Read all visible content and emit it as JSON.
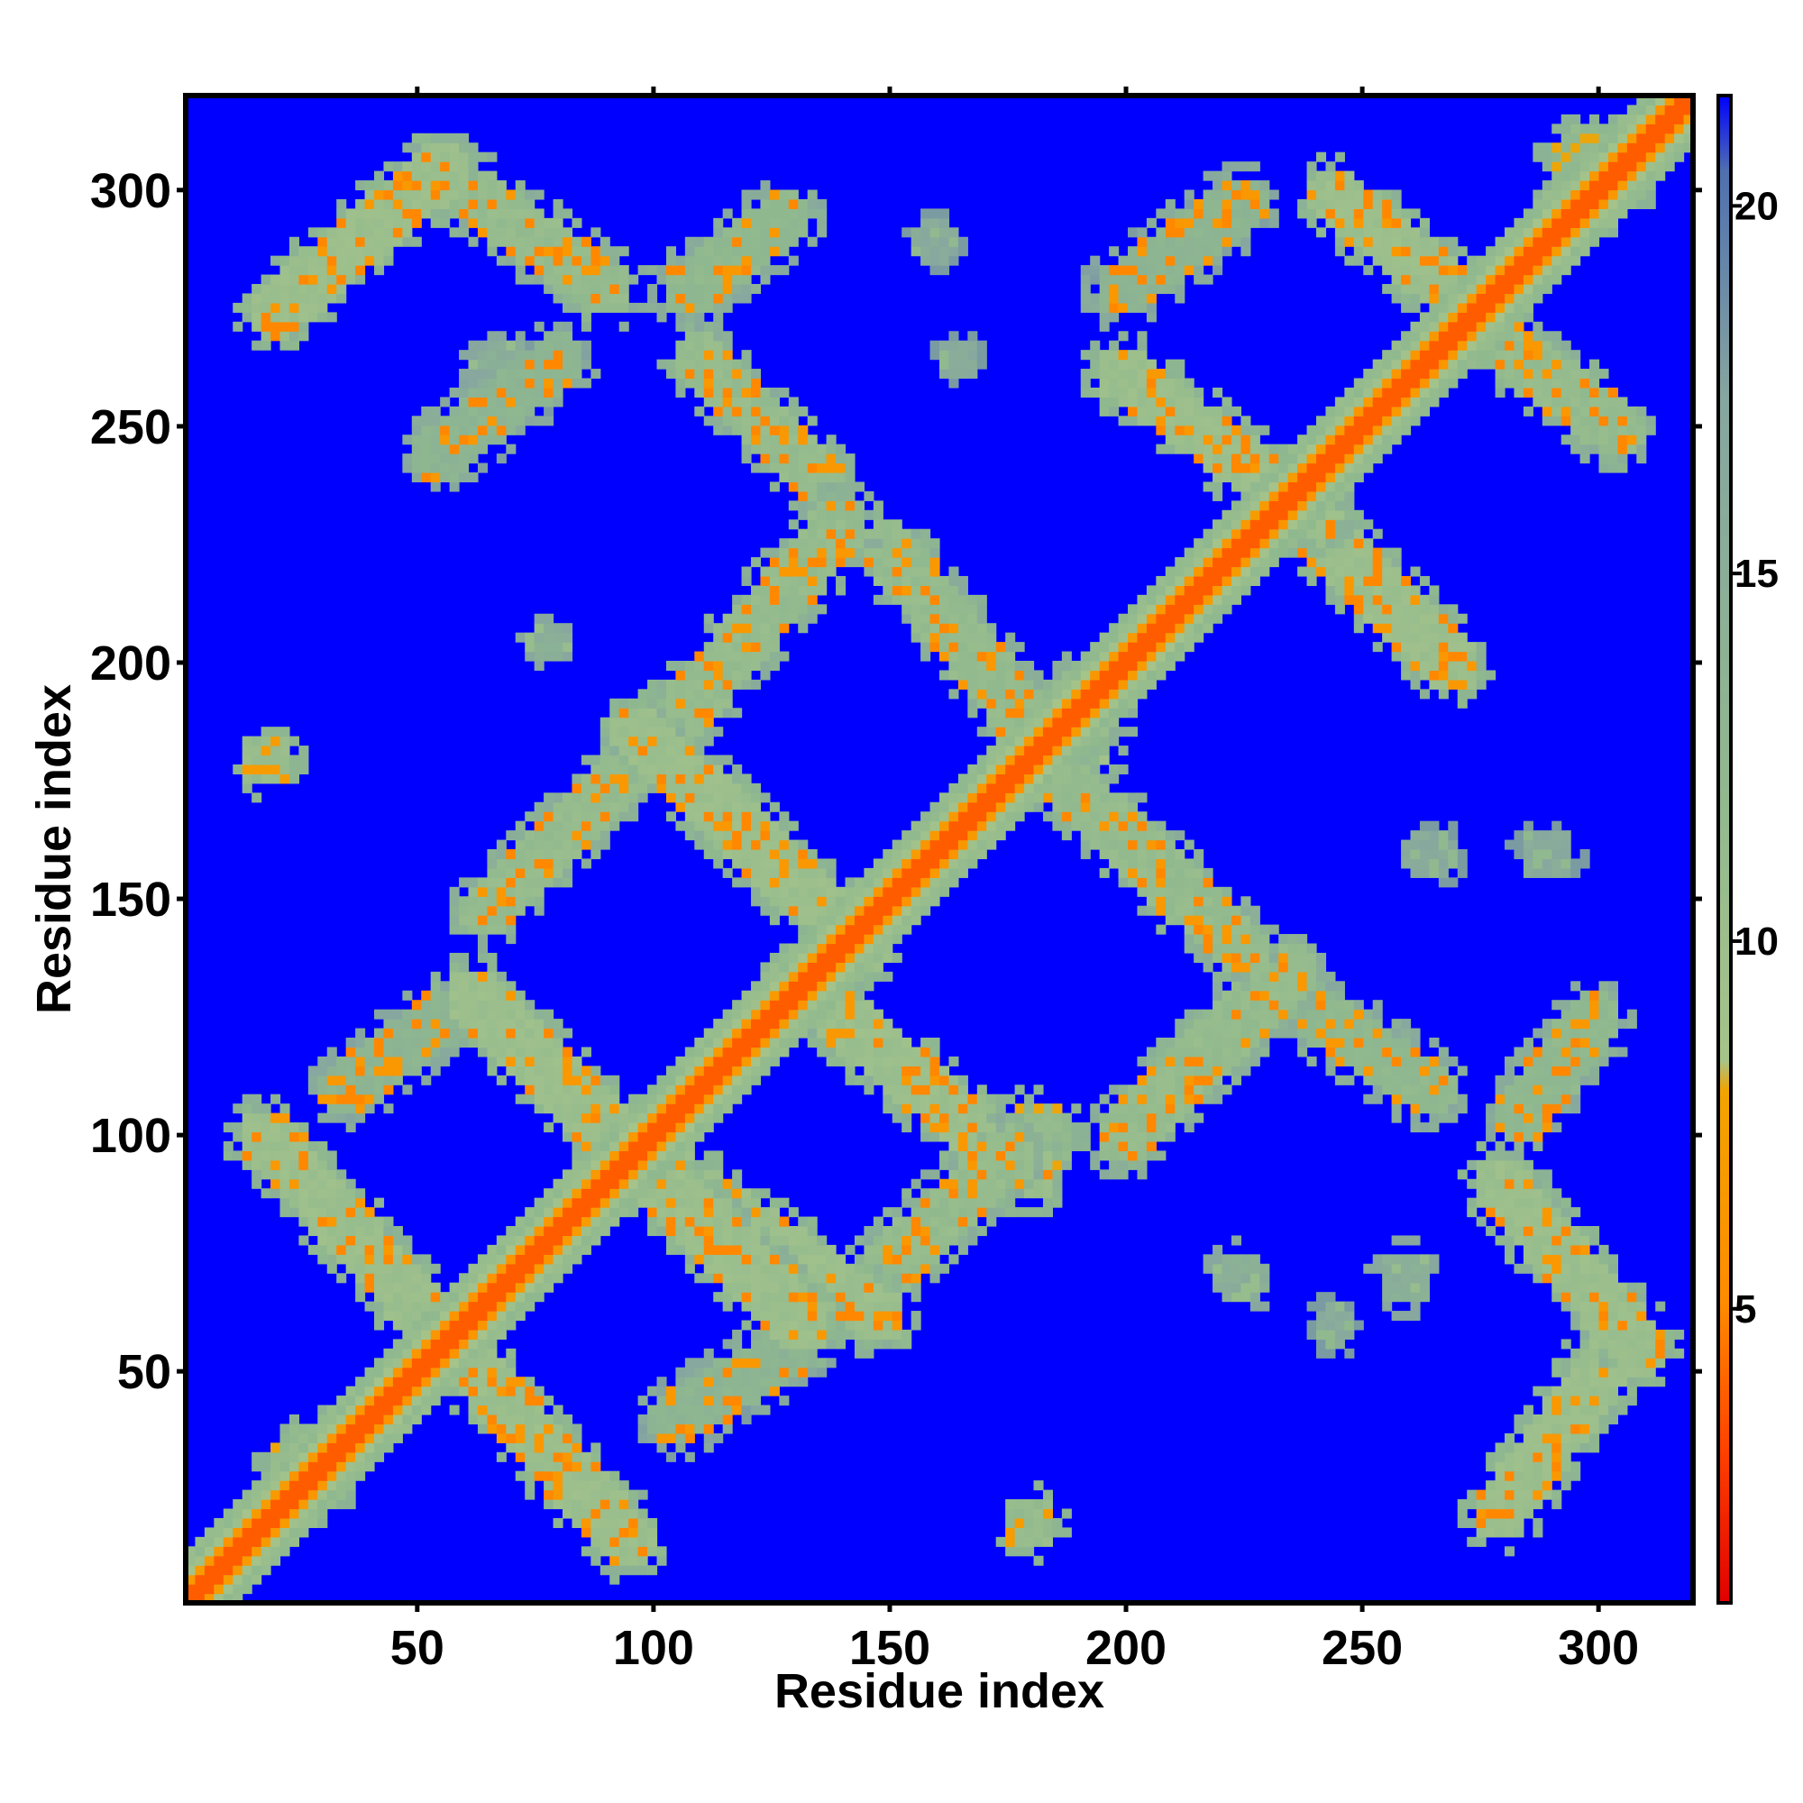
{
  "chart_data": {
    "type": "heatmap",
    "xlabel": "Residue index",
    "ylabel": "Residue index",
    "xlim": [
      1,
      320
    ],
    "ylim": [
      1,
      320
    ],
    "x_ticks": [
      50,
      100,
      150,
      200,
      250,
      300
    ],
    "y_ticks": [
      50,
      100,
      150,
      200,
      250,
      300
    ],
    "colorbar": {
      "range": [
        1,
        21.5
      ],
      "ticks": [
        5,
        10,
        15,
        20
      ],
      "colors": [
        "#e00000",
        "#ff4000",
        "#ff8c00",
        "#f2a400",
        "#a6c48a",
        "#8fb88f",
        "#86a6a0",
        "#4f6fb0",
        "#0000ff"
      ],
      "stops": [
        0,
        0.1,
        0.2,
        0.34,
        0.36,
        0.55,
        0.8,
        0.95,
        1
      ]
    },
    "diagonal": {
      "from": 1,
      "to": 320,
      "core_value": 3.8
    },
    "contact_bands": [
      {
        "x": [
          18,
          95
        ],
        "y": [
          100,
          14
        ],
        "value": 10
      },
      {
        "x": [
          62,
          132
        ],
        "y": [
          130,
          60
        ],
        "value": 10
      },
      {
        "x": [
          98,
          148
        ],
        "y": [
          96,
          62
        ],
        "value": 10
      },
      {
        "x": [
          140,
          175
        ],
        "y": [
          62,
          96
        ],
        "value": 11
      },
      {
        "x": [
          132,
          180
        ],
        "y": [
          132,
          92
        ],
        "value": 10
      },
      {
        "x": [
          97,
          145
        ],
        "y": [
          186,
          140
        ],
        "value": 10
      },
      {
        "x": [
          65,
          95
        ],
        "y": [
          148,
          178
        ],
        "value": 11
      },
      {
        "x": [
          100,
          140
        ],
        "y": [
          182,
          230
        ],
        "value": 11
      },
      {
        "x": [
          110,
          135
        ],
        "y": [
          265,
          240
        ],
        "value": 11
      },
      {
        "x": [
          150,
          178
        ],
        "y": [
          225,
          190
        ],
        "value": 11
      },
      {
        "x": [
          185,
          225
        ],
        "y": [
          178,
          140
        ],
        "value": 11
      },
      {
        "x": [
          200,
          235
        ],
        "y": [
          100,
          135
        ],
        "value": 11
      },
      {
        "x": [
          235,
          265
        ],
        "y": [
          130,
          110
        ],
        "value": 12
      },
      {
        "x": [
          200,
          240
        ],
        "y": [
          262,
          232
        ],
        "value": 10
      },
      {
        "x": [
          240,
          270
        ],
        "y": [
          230,
          200
        ],
        "value": 10
      },
      {
        "x": [
          245,
          275
        ],
        "y": [
          300,
          275
        ],
        "value": 10
      },
      {
        "x": [
          275,
          305
        ],
        "y": [
          272,
          250
        ],
        "value": 11
      },
      {
        "x": [
          280,
          310
        ],
        "y": [
          90,
          55
        ],
        "value": 10
      },
      {
        "x": [
          280,
          305
        ],
        "y": [
          20,
          55
        ],
        "value": 10
      },
      {
        "x": [
          20,
          55
        ],
        "y": [
          275,
          305
        ],
        "value": 10
      },
      {
        "x": [
          55,
          90
        ],
        "y": [
          305,
          280
        ],
        "value": 11
      },
      {
        "x": [
          108,
          128
        ],
        "y": [
          280,
          295
        ],
        "value": 12
      },
      {
        "x": [
          200,
          225
        ],
        "y": [
          280,
          298
        ],
        "value": 13
      },
      {
        "x": [
          285,
          300
        ],
        "y": [
          105,
          125
        ],
        "value": 12
      },
      {
        "x": [
          105,
          130
        ],
        "y": [
          40,
          55
        ],
        "value": 13
      },
      {
        "x": [
          35,
          55
        ],
        "y": [
          110,
          125
        ],
        "value": 13
      },
      {
        "x": [
          55,
          80
        ],
        "y": [
          245,
          265
        ],
        "value": 13
      }
    ],
    "contact_patches": [
      {
        "x": 18,
        "y": 180,
        "r": 6,
        "value": 10
      },
      {
        "x": 180,
        "y": 18,
        "r": 6,
        "value": 10
      },
      {
        "x": 182,
        "y": 100,
        "r": 8,
        "value": 11
      },
      {
        "x": 100,
        "y": 185,
        "r": 7,
        "value": 11
      },
      {
        "x": 186,
        "y": 186,
        "r": 12,
        "value": 12
      },
      {
        "x": 28,
        "y": 30,
        "r": 9,
        "value": 11
      },
      {
        "x": 18,
        "y": 98,
        "r": 4,
        "value": 9
      },
      {
        "x": 300,
        "y": 305,
        "r": 10,
        "value": 11
      },
      {
        "x": 305,
        "y": 58,
        "r": 8,
        "value": 11
      },
      {
        "x": 130,
        "y": 65,
        "r": 5,
        "value": 10
      },
      {
        "x": 225,
        "y": 70,
        "r": 6,
        "value": 14
      },
      {
        "x": 260,
        "y": 70,
        "r": 6,
        "value": 14
      },
      {
        "x": 245,
        "y": 60,
        "r": 5,
        "value": 15
      },
      {
        "x": 160,
        "y": 290,
        "r": 5,
        "value": 15
      },
      {
        "x": 165,
        "y": 265,
        "r": 5,
        "value": 15
      },
      {
        "x": 265,
        "y": 160,
        "r": 6,
        "value": 15
      },
      {
        "x": 290,
        "y": 160,
        "r": 6,
        "value": 15
      },
      {
        "x": 78,
        "y": 205,
        "r": 5,
        "value": 14
      },
      {
        "x": 68,
        "y": 262,
        "r": 7,
        "value": 14
      }
    ]
  }
}
